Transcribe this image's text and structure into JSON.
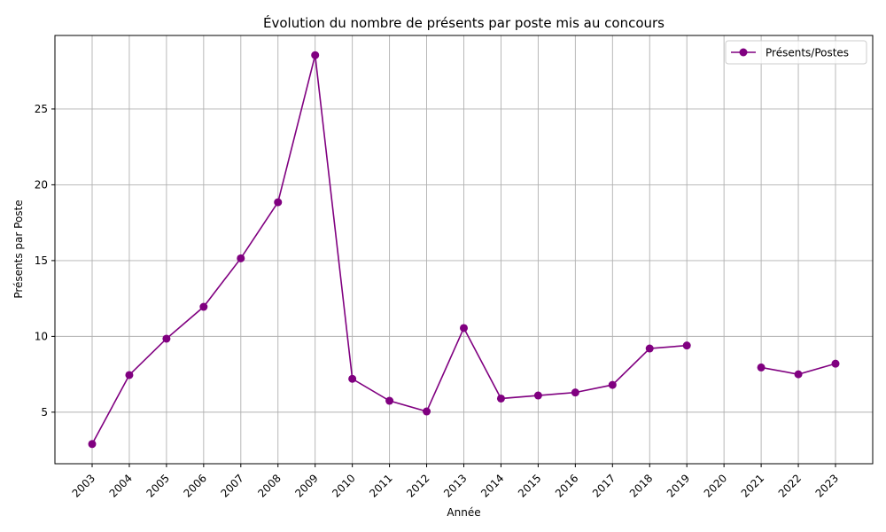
{
  "chart_data": {
    "type": "line",
    "title": "Évolution du nombre de présents par poste mis au concours",
    "xlabel": "Année",
    "ylabel": "Présents par Poste",
    "categories": [
      "2003",
      "2004",
      "2005",
      "2006",
      "2007",
      "2008",
      "2009",
      "2010",
      "2011",
      "2012",
      "2013",
      "2014",
      "2015",
      "2016",
      "2017",
      "2018",
      "2019",
      "2020",
      "2021",
      "2022",
      "2023"
    ],
    "series": [
      {
        "name": "Présents/Postes",
        "color": "#800080",
        "marker": "circle",
        "values": [
          2.9,
          7.45,
          9.85,
          11.95,
          15.15,
          18.85,
          28.55,
          7.2,
          5.75,
          5.05,
          10.55,
          5.9,
          6.1,
          6.3,
          6.8,
          9.2,
          9.4,
          null,
          7.95,
          7.5,
          8.2
        ]
      }
    ],
    "ylim": [
      1.6,
      29.85
    ],
    "yticks": [
      5,
      10,
      15,
      20,
      25
    ],
    "grid": true,
    "legend_position": "top-right"
  }
}
